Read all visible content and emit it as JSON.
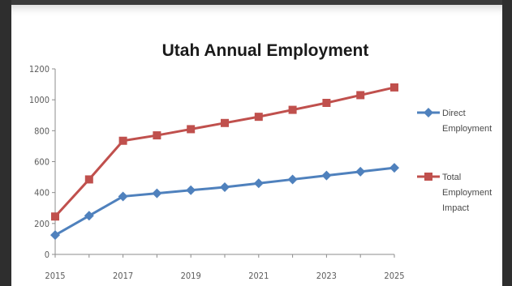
{
  "chart_data": {
    "type": "line",
    "title": "Utah Annual Employment",
    "xlabel": "",
    "ylabel": "",
    "x": [
      2015,
      2016,
      2017,
      2018,
      2019,
      2020,
      2021,
      2022,
      2023,
      2024,
      2025
    ],
    "x_tick_labels": [
      "2015",
      "2017",
      "2019",
      "2021",
      "2023",
      "2025"
    ],
    "ylim": [
      0,
      1200
    ],
    "y_tick_labels": [
      "0",
      "200",
      "400",
      "600",
      "800",
      "1000",
      "1200"
    ],
    "grid": false,
    "legend_position": "right",
    "series": [
      {
        "name_lines": [
          "Direct",
          "Employment"
        ],
        "color": "#4f81bd",
        "marker": "diamond",
        "values": [
          125,
          250,
          375,
          395,
          415,
          435,
          460,
          485,
          510,
          535,
          560
        ]
      },
      {
        "name_lines": [
          "Total",
          "Employment",
          "Impact"
        ],
        "color": "#c0504d",
        "marker": "square",
        "values": [
          245,
          485,
          735,
          770,
          810,
          850,
          890,
          935,
          980,
          1030,
          1080
        ]
      }
    ]
  }
}
